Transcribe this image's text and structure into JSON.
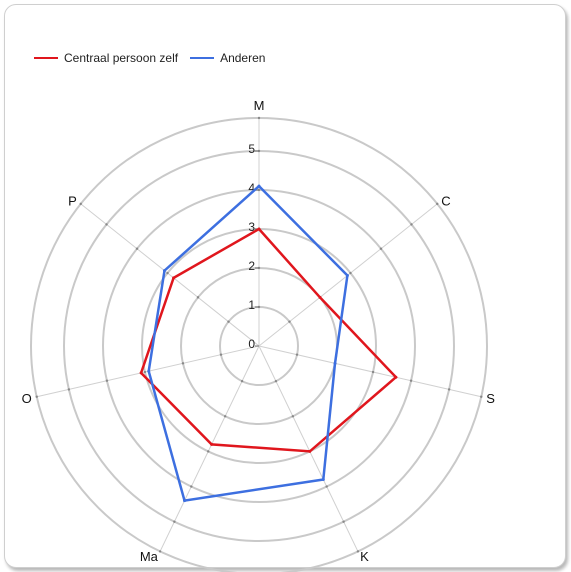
{
  "chart_data": {
    "type": "radar",
    "axes": [
      "M",
      "C",
      "S",
      "K",
      "Ma",
      "O",
      "P"
    ],
    "scale": {
      "min": 0,
      "max": 5,
      "ticks": [
        0,
        1,
        2,
        3,
        4,
        5
      ]
    },
    "grid": true,
    "legend_position": "top-left",
    "series": [
      {
        "name": "Centraal persoon zelf",
        "color": "#e0161d",
        "values": [
          3.0,
          2.0,
          3.6,
          3.0,
          2.8,
          3.1,
          2.8
        ]
      },
      {
        "name": "Anderen",
        "color": "#3d6fe0",
        "values": [
          4.1,
          2.9,
          2.0,
          3.8,
          4.4,
          2.9,
          3.1
        ]
      }
    ]
  }
}
